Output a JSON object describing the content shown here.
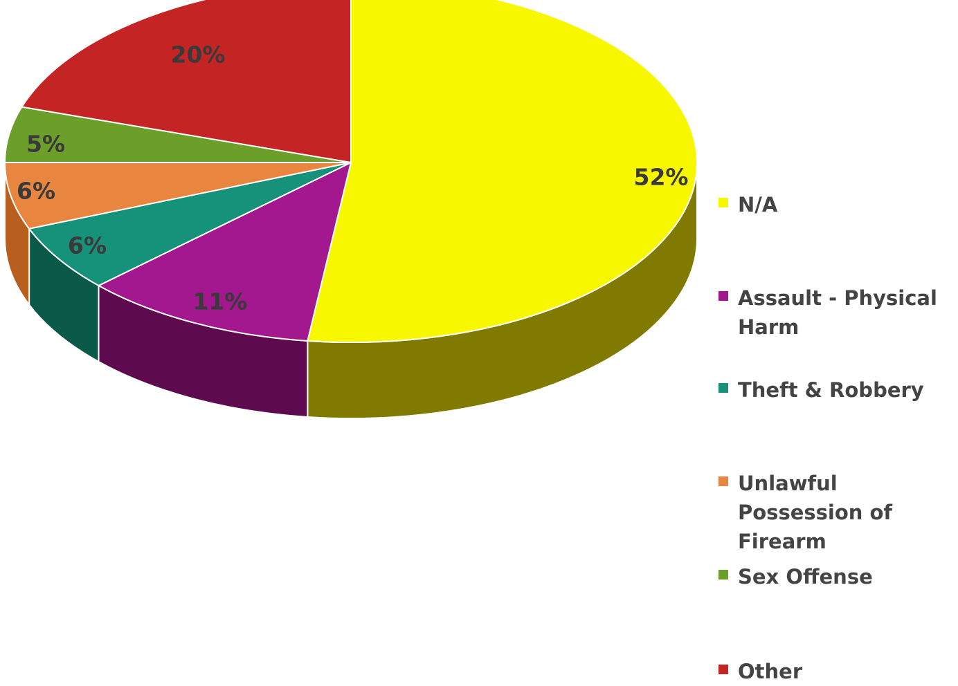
{
  "chart_data": {
    "type": "pie",
    "title": "",
    "legend_position": "right",
    "slices": [
      {
        "label": "N/A",
        "value": 52,
        "display": "52%",
        "color": "#f7f700",
        "side_color": "#807a00"
      },
      {
        "label": "Assault - Physical Harm",
        "value": 11,
        "display": "11%",
        "color": "#a3178f",
        "side_color": "#5e0a4f"
      },
      {
        "label": "Theft & Robbery",
        "value": 6,
        "display": "6%",
        "color": "#16917a",
        "side_color": "#0b5a49"
      },
      {
        "label": "Unlawful Possession of Firearm",
        "value": 6,
        "display": "6%",
        "color": "#e8853f",
        "side_color": "#b85f20"
      },
      {
        "label": "Sex Offense",
        "value": 5,
        "display": "5%",
        "color": "#6c9e2a",
        "side_color": "#456a18"
      },
      {
        "label": "Other",
        "value": 20,
        "display": "20%",
        "color": "#c42424",
        "side_color": "#7e1111"
      }
    ]
  }
}
